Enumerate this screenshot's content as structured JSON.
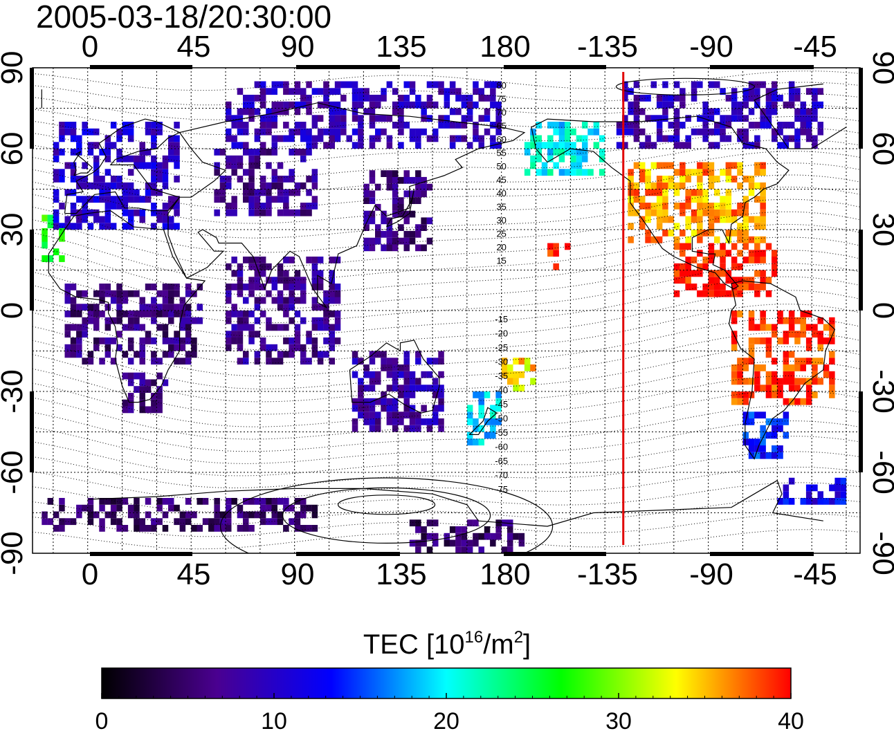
{
  "timestamp": "2005-03-18/20:30:00",
  "map": {
    "projection": "equirectangular",
    "lon_top_ticks": [
      "0",
      "45",
      "90",
      "135",
      "180",
      "-135",
      "-90",
      "-45"
    ],
    "lon_bottom_ticks": [
      "0",
      "45",
      "90",
      "135",
      "180",
      "-135",
      "-90",
      "-45"
    ],
    "lat_left_ticks": [
      "90",
      "60",
      "30",
      "0",
      "-30",
      "-60",
      "-90"
    ],
    "lat_right_ticks": [
      "90",
      "60",
      "30",
      "0",
      "-30",
      "-60",
      "-90"
    ],
    "terminator_longitude": -127,
    "terminator_color": "#e00000",
    "mag_lat_labels_north": [
      "80",
      "75",
      "70",
      "65",
      "60",
      "55",
      "50",
      "45",
      "40",
      "35",
      "30",
      "25",
      "20",
      "15"
    ],
    "mag_lat_labels_south": [
      "-15",
      "-20",
      "-25",
      "-30",
      "-35",
      "-40",
      "-45",
      "-50",
      "-55",
      "-60",
      "-65",
      "-70",
      "-75"
    ]
  },
  "colorbar": {
    "title_prefix": "TEC  [10",
    "title_sup1": "16",
    "title_mid": "/m",
    "title_sup2": "2",
    "title_suffix": "]",
    "min": 0,
    "max": 40,
    "tick_labels": [
      "0",
      "10",
      "20",
      "30",
      "40"
    ],
    "colors": [
      "#000000",
      "#4a0090",
      "#0000ff",
      "#00ffff",
      "#00ff00",
      "#ffff00",
      "#ff0000"
    ]
  },
  "tec_regions": [
    {
      "name": "europe",
      "lon": [
        -15,
        40
      ],
      "lat": [
        30,
        70
      ],
      "tec": 10
    },
    {
      "name": "north-africa-west",
      "lon": [
        -20,
        -10
      ],
      "lat": [
        18,
        35
      ],
      "tec": 26
    },
    {
      "name": "east-asia",
      "lon": [
        120,
        150
      ],
      "lat": [
        22,
        50
      ],
      "tec": 6
    },
    {
      "name": "central-asia",
      "lon": [
        55,
        100
      ],
      "lat": [
        35,
        60
      ],
      "tec": 7
    },
    {
      "name": "siberia",
      "lon": [
        60,
        180
      ],
      "lat": [
        60,
        85
      ],
      "tec": 9
    },
    {
      "name": "south-africa",
      "lon": [
        15,
        35
      ],
      "lat": [
        -38,
        -25
      ],
      "tec": 6
    },
    {
      "name": "australia",
      "lon": [
        115,
        155
      ],
      "lat": [
        -45,
        -15
      ],
      "tec": 8
    },
    {
      "name": "new-zealand",
      "lon": [
        165,
        180
      ],
      "lat": [
        -50,
        -30
      ],
      "tec": 19
    },
    {
      "name": "pacific-south",
      "lon": [
        180,
        195
      ],
      "lat": [
        -30,
        -18
      ],
      "tec": 34
    },
    {
      "name": "alaska",
      "lon": [
        -170,
        -135
      ],
      "lat": [
        50,
        68
      ],
      "tec": 20
    },
    {
      "name": "north-america",
      "lon": [
        -125,
        -65
      ],
      "lat": [
        25,
        55
      ],
      "tec": 36
    },
    {
      "name": "canada-north",
      "lon": [
        -130,
        -40
      ],
      "lat": [
        60,
        85
      ],
      "tec": 9
    },
    {
      "name": "central-america",
      "lon": [
        -105,
        -60
      ],
      "lat": [
        5,
        25
      ],
      "tec": 40
    },
    {
      "name": "south-america",
      "lon": [
        -80,
        -35
      ],
      "lat": [
        -35,
        0
      ],
      "tec": 39
    },
    {
      "name": "patagonia",
      "lon": [
        -75,
        -55
      ],
      "lat": [
        -55,
        -38
      ],
      "tec": 14
    },
    {
      "name": "hawaii",
      "lon": [
        -160,
        -150
      ],
      "lat": [
        15,
        25
      ],
      "tec": 40
    },
    {
      "name": "antarctica-indian",
      "lon": [
        -20,
        100
      ],
      "lat": [
        -82,
        -70
      ],
      "tec": 5
    },
    {
      "name": "antarctica-pacific",
      "lon": [
        140,
        190
      ],
      "lat": [
        -90,
        -78
      ],
      "tec": 5
    },
    {
      "name": "antarctic-peninsula",
      "lon": [
        -60,
        -30
      ],
      "lat": [
        -72,
        -62
      ],
      "tec": 12
    },
    {
      "name": "eq-africa",
      "lon": [
        -10,
        50
      ],
      "lat": [
        -20,
        10
      ],
      "tec": 6
    },
    {
      "name": "indian-ocean",
      "lon": [
        60,
        110
      ],
      "lat": [
        -20,
        20
      ],
      "tec": 7
    }
  ]
}
